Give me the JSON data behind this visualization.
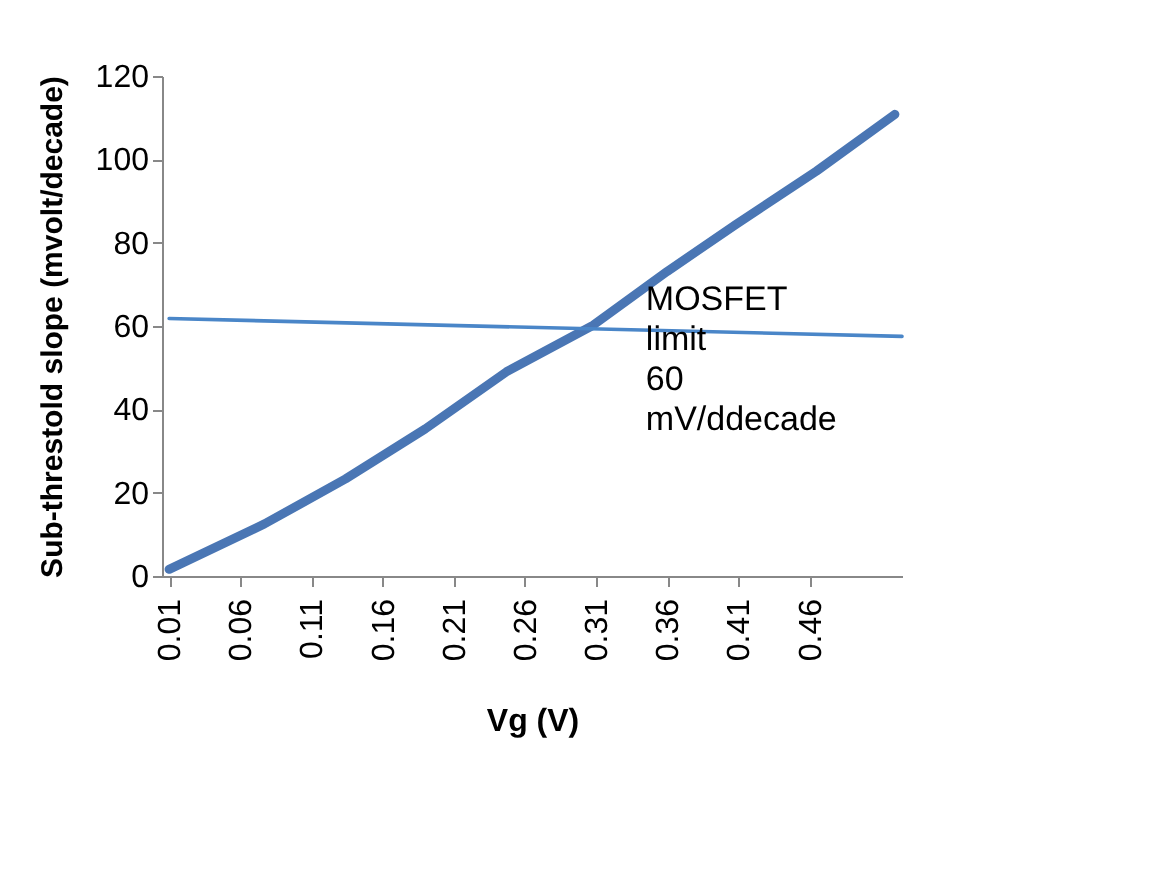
{
  "chart_data": {
    "type": "line",
    "xlabel": "Vg (V)",
    "ylabel": "Sub-threstold slope (mvolt/decade)",
    "series": [
      {
        "color": "#4a76b4",
        "x": [
          0.01,
          0.077,
          0.134,
          0.19,
          0.247,
          0.308,
          0.36,
          0.408,
          0.465,
          0.52
        ],
        "values": [
          1.6,
          12.5,
          23.3,
          35.3,
          49,
          60.2,
          73.1,
          84.3,
          97.2,
          110.8
        ]
      },
      {
        "color": "#4a86c8",
        "x": [
          0.01,
          0.525
        ],
        "values": [
          61.8,
          57.5
        ]
      }
    ],
    "annotations": [
      {
        "text": "MOSFET limit 60 mV/ddecade",
        "x": 0.345,
        "y": 60
      }
    ],
    "xlim": [
      0.005,
      0.525
    ],
    "xticks": [
      0.01,
      0.06,
      0.11,
      0.16,
      0.21,
      0.26,
      0.31,
      0.36,
      0.41,
      0.46
    ],
    "ylim": [
      0,
      120
    ],
    "yticks": [
      0,
      20,
      40,
      60,
      80,
      100,
      120
    ],
    "grid": false,
    "marker": "none",
    "line_style": "solid"
  }
}
